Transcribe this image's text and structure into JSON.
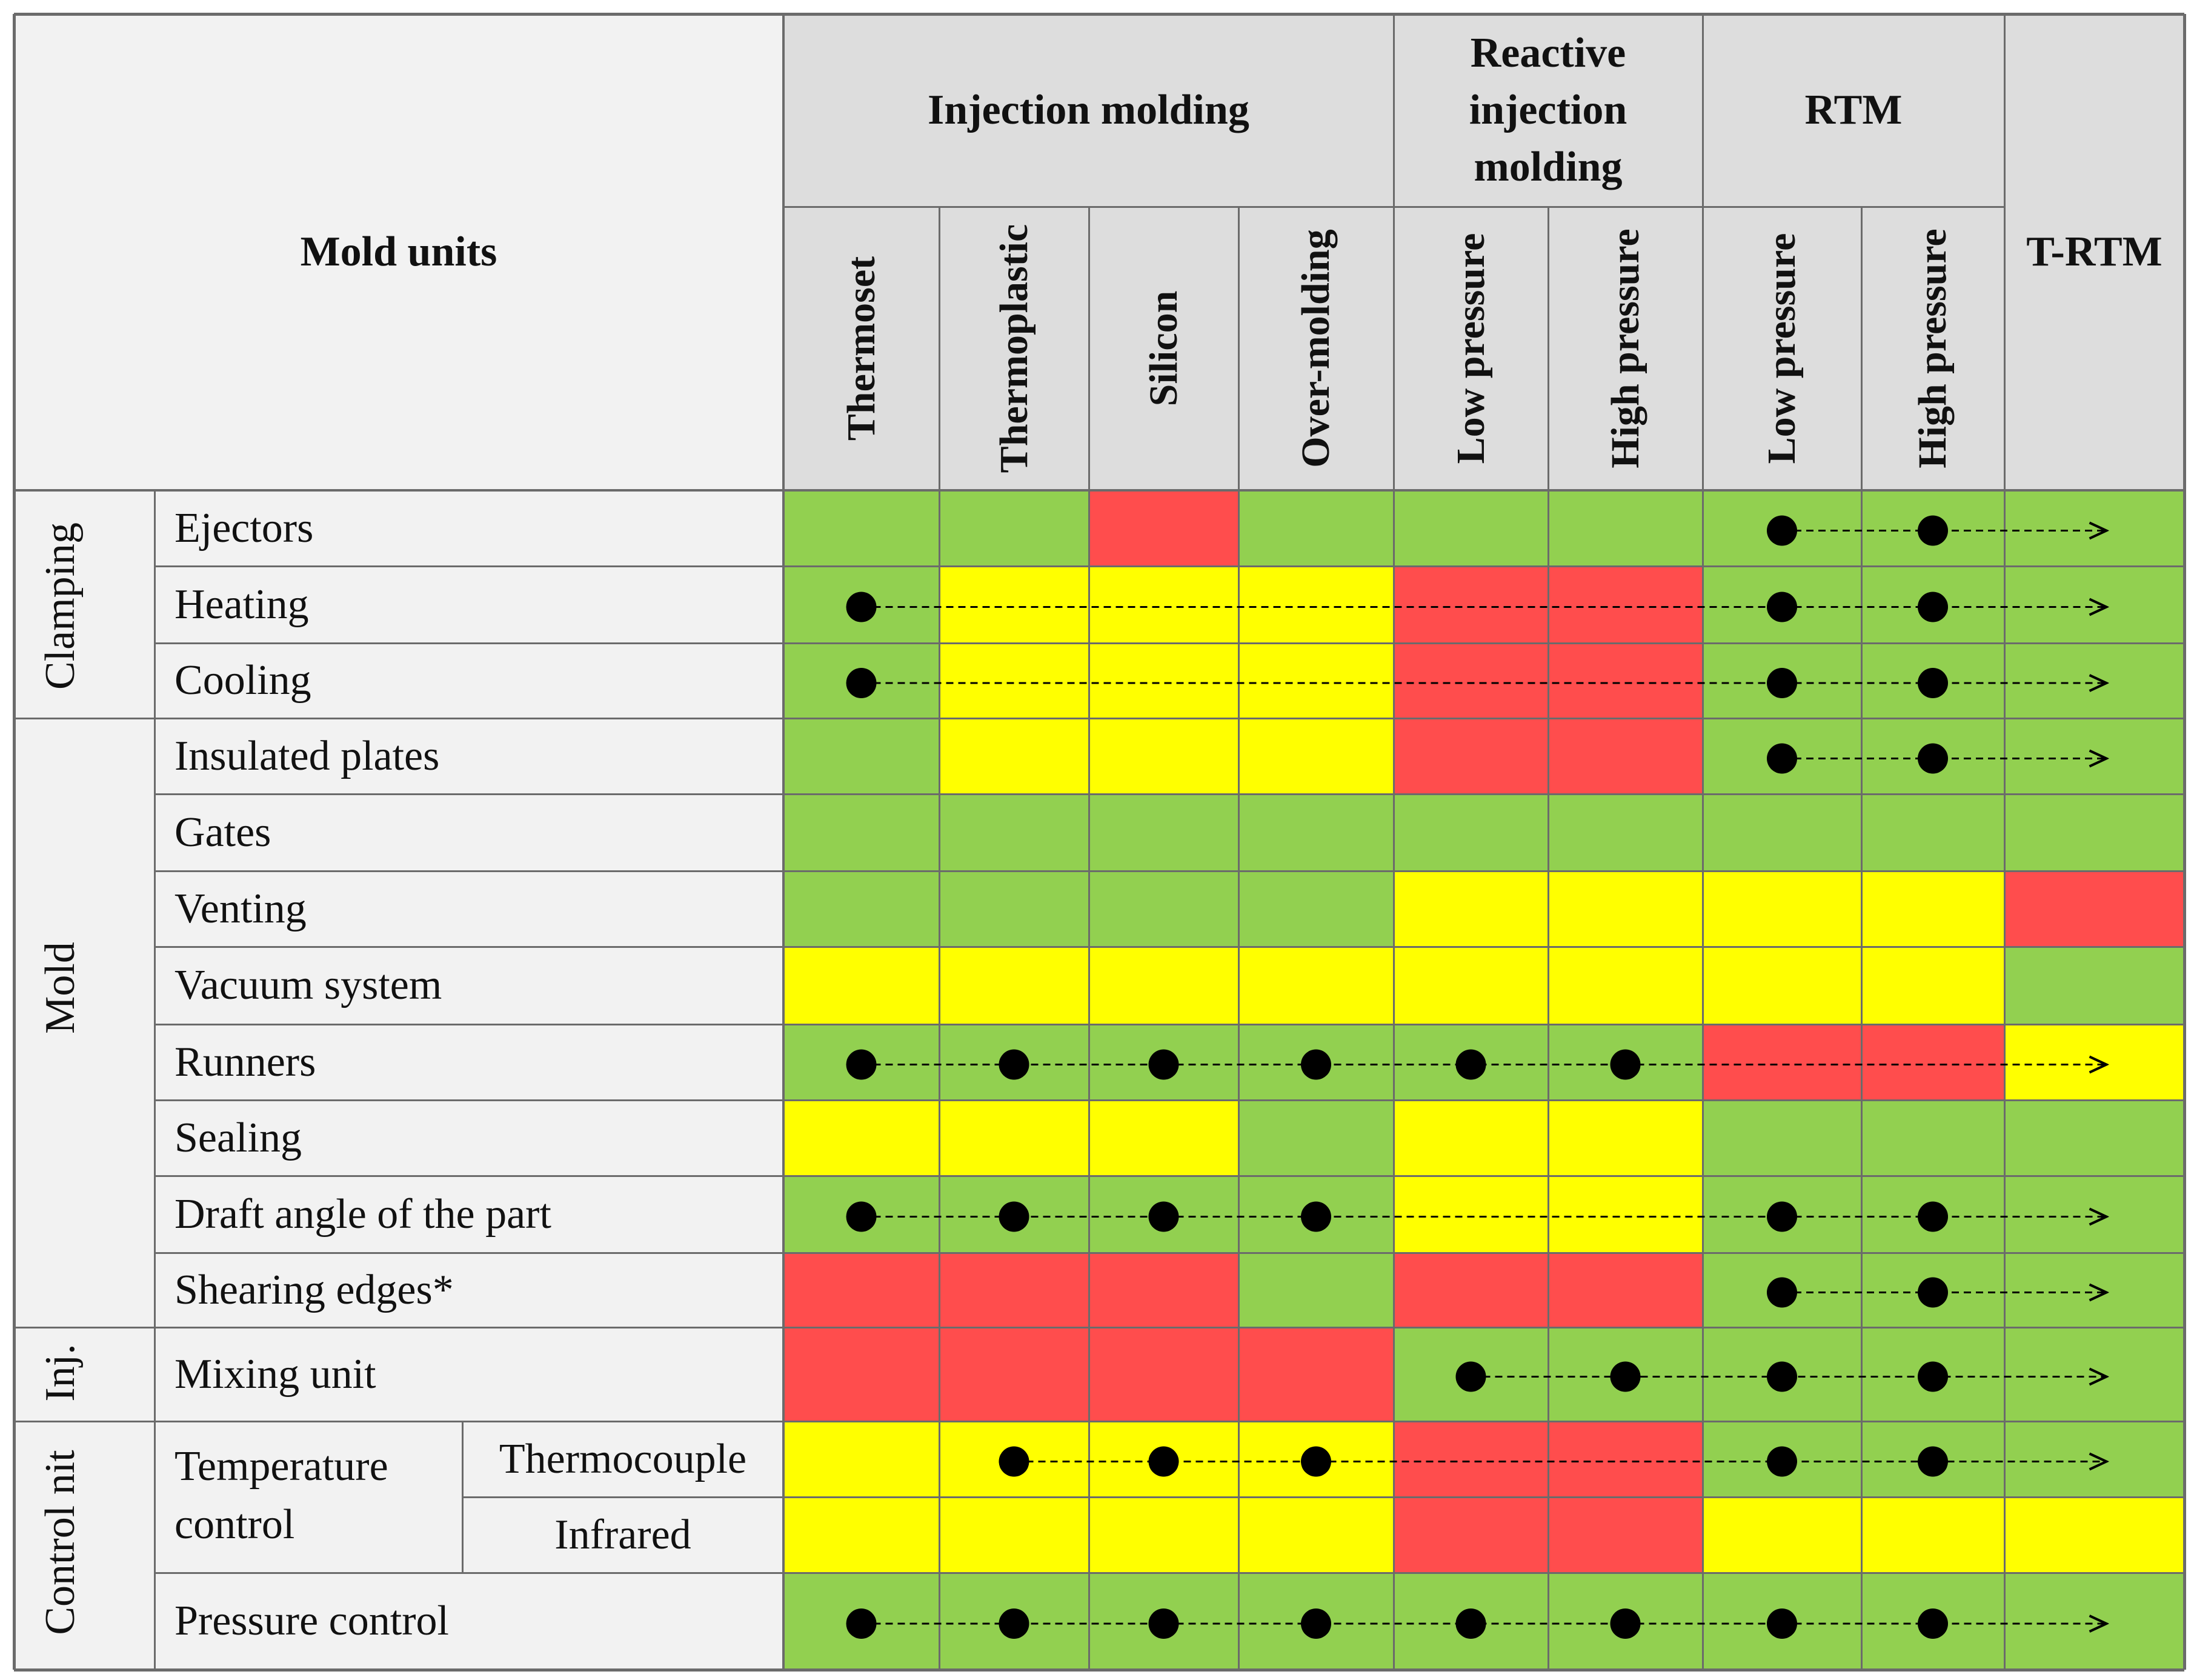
{
  "header": {
    "corner_label": "Mold units",
    "process_groups": [
      {
        "label": "Injection molding"
      },
      {
        "label": "Reactive injection molding",
        "lines": [
          "Reactive",
          "injection",
          "molding"
        ]
      },
      {
        "label": "RTM"
      },
      {
        "label": "T-RTM"
      }
    ],
    "sub_columns": [
      "Thermoset",
      "Thermoplastic",
      "Silicon",
      "Over-molding",
      "Low pressure",
      "High pressure",
      "Low pressure",
      "High pressure"
    ]
  },
  "groups": [
    "Clamping",
    "Mold",
    "Inj.",
    "Control nit"
  ],
  "rows": [
    {
      "label": "Ejectors",
      "colors": "GGRGGGGGG",
      "dots": [
        6,
        7
      ],
      "arrow_to": 8
    },
    {
      "label": "Heating",
      "colors": "GYYYRRGGG",
      "dots": [
        0,
        6,
        7
      ],
      "arrow_to": 8
    },
    {
      "label": "Cooling",
      "colors": "GYYYRRGGG",
      "dots": [
        0,
        6,
        7
      ],
      "arrow_to": 8
    },
    {
      "label": "Insulated plates",
      "colors": "GYYYRRGGG",
      "dots": [
        6,
        7
      ],
      "arrow_to": 8
    },
    {
      "label": "Gates",
      "colors": "GGGGGGGGG",
      "dots": [],
      "arrow_to": null
    },
    {
      "label": "Venting",
      "colors": "GGGGYYYYR",
      "dots": [],
      "arrow_to": null
    },
    {
      "label": "Vacuum system",
      "colors": "YYYYYYYYG",
      "dots": [],
      "arrow_to": null
    },
    {
      "label": "Runners",
      "colors": "GGGGGGRRY",
      "dots": [
        0,
        1,
        2,
        3,
        4,
        5
      ],
      "arrow_to": 8
    },
    {
      "label": "Sealing",
      "colors": "YYYGYYGGG",
      "dots": [],
      "arrow_to": null
    },
    {
      "label": "Draft angle of the part",
      "colors": "GGGGYYGGG",
      "dots": [
        0,
        1,
        2,
        3,
        6,
        7
      ],
      "arrow_to": 8
    },
    {
      "label": "Shearing edges*",
      "colors": "RRRGRRGGG",
      "dots": [
        6,
        7
      ],
      "arrow_to": 8
    },
    {
      "label": "Mixing unit",
      "colors": "RRRRGGGGG",
      "dots": [
        4,
        5,
        6,
        7
      ],
      "arrow_to": 8
    },
    {
      "label": "Thermocouple",
      "colors": "YYYYRRGGG",
      "dots": [
        1,
        2,
        3,
        6,
        7
      ],
      "arrow_to": 8
    },
    {
      "label": "Infrared",
      "colors": "YYYYRRYYY",
      "dots": [],
      "arrow_to": null
    },
    {
      "label": "Pressure control",
      "colors": "GGGGGGGGG",
      "dots": [
        0,
        1,
        2,
        3,
        4,
        5,
        6,
        7
      ],
      "arrow_to": 8
    }
  ],
  "temperature_control_label": [
    "Temperature",
    "control"
  ],
  "colors": {
    "G": "#92d050",
    "Y": "#ffff00",
    "R": "#ff4d4d",
    "header_bg": "#dddddd",
    "label_bg": "#f2f2f2",
    "grid": "#6b6b6b",
    "dot": "#000000"
  }
}
